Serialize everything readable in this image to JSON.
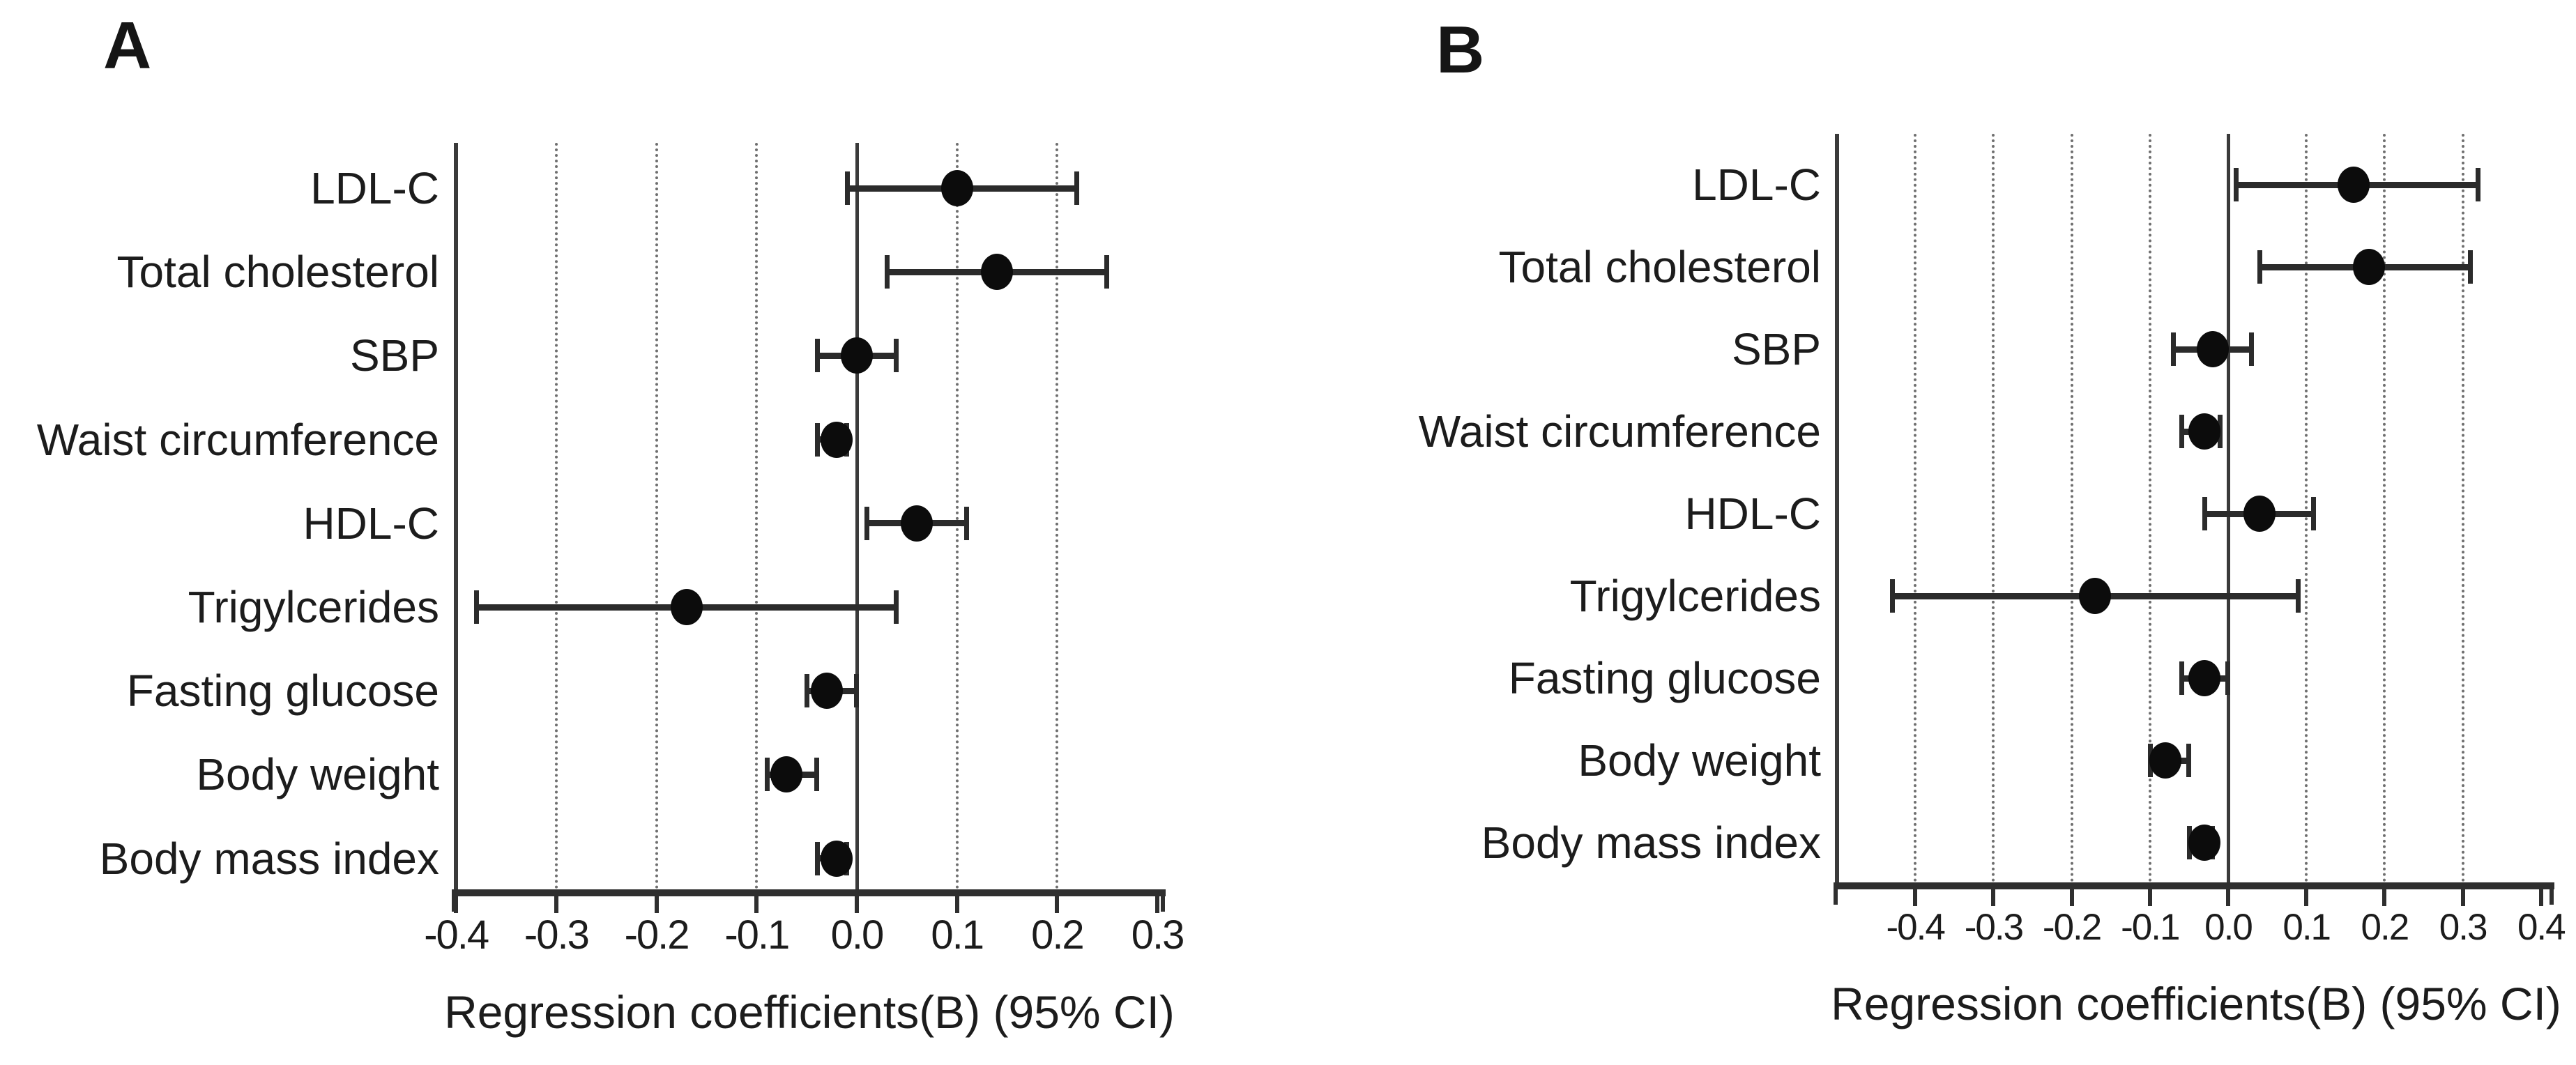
{
  "figure": {
    "background": "#ffffff",
    "text_color": "#1c1c1c",
    "axis_color": "#2f2f2f",
    "grid_color": "#6f6f6f",
    "marker_color": "#0c0c0c"
  },
  "chart_data": [
    {
      "type": "scatter",
      "subtype": "forest-plot-horizontal-ci",
      "panel_label": "A",
      "xlabel": "Regression coefficients(B) (95% CI)",
      "categories": [
        "LDL-C",
        "Total cholesterol",
        "SBP",
        "Waist circumference",
        "HDL-C",
        "Trigylcerides",
        "Fasting glucose",
        "Body weight",
        "Body mass index"
      ],
      "series": [
        {
          "name": "Regression coefficient (95% CI)",
          "values": [
            {
              "b": 0.1,
              "lo": -0.01,
              "hi": 0.22
            },
            {
              "b": 0.14,
              "lo": 0.03,
              "hi": 0.25
            },
            {
              "b": 0.0,
              "lo": -0.04,
              "hi": 0.04
            },
            {
              "b": -0.02,
              "lo": -0.04,
              "hi": -0.01
            },
            {
              "b": 0.06,
              "lo": 0.01,
              "hi": 0.11
            },
            {
              "b": -0.17,
              "lo": -0.38,
              "hi": 0.04
            },
            {
              "b": -0.03,
              "lo": -0.05,
              "hi": 0.0
            },
            {
              "b": -0.07,
              "lo": -0.09,
              "hi": -0.04
            },
            {
              "b": -0.02,
              "lo": -0.04,
              "hi": -0.01
            }
          ]
        }
      ],
      "xlim": [
        -0.4,
        0.31
      ],
      "xticks": [
        -0.4,
        -0.3,
        -0.2,
        -0.1,
        0.0,
        0.1,
        0.2,
        0.3
      ],
      "xtick_labels": [
        "-0.4",
        "-0.3",
        "-0.2",
        "-0.1",
        "0.0",
        "0.1",
        "0.2",
        "0.3"
      ],
      "gridlines_dotted": [
        -0.3,
        -0.2,
        -0.1,
        0.1,
        0.2
      ],
      "zero_line": 0.0,
      "grid": true,
      "legend": false
    },
    {
      "type": "scatter",
      "subtype": "forest-plot-horizontal-ci",
      "panel_label": "B",
      "xlabel": "Regression coefficients(B) (95% CI)",
      "categories": [
        "LDL-C",
        "Total cholesterol",
        "SBP",
        "Waist circumference",
        "HDL-C",
        "Trigylcerides",
        "Fasting glucose",
        "Body weight",
        "Body mass index"
      ],
      "series": [
        {
          "name": "Regression coefficient (95% CI)",
          "values": [
            {
              "b": 0.16,
              "lo": 0.01,
              "hi": 0.32
            },
            {
              "b": 0.18,
              "lo": 0.04,
              "hi": 0.31
            },
            {
              "b": -0.02,
              "lo": -0.07,
              "hi": 0.03
            },
            {
              "b": -0.03,
              "lo": -0.06,
              "hi": -0.01
            },
            {
              "b": 0.04,
              "lo": -0.03,
              "hi": 0.11
            },
            {
              "b": -0.17,
              "lo": -0.43,
              "hi": 0.09
            },
            {
              "b": -0.03,
              "lo": -0.06,
              "hi": 0.0
            },
            {
              "b": -0.08,
              "lo": -0.1,
              "hi": -0.05
            },
            {
              "b": -0.03,
              "lo": -0.05,
              "hi": -0.02
            }
          ]
        }
      ],
      "xlim": [
        -0.5,
        0.42
      ],
      "xticks": [
        -0.4,
        -0.3,
        -0.2,
        -0.1,
        0.0,
        0.1,
        0.2,
        0.3,
        0.4
      ],
      "xtick_labels": [
        "-0.4",
        "-0.3",
        "-0.2",
        "-0.1",
        "0.0",
        "0.1",
        "0.2",
        "0.3",
        "0.4"
      ],
      "gridlines_dotted": [
        -0.4,
        -0.3,
        -0.2,
        -0.1,
        0.1,
        0.2,
        0.3
      ],
      "zero_line": 0.0,
      "grid": true,
      "legend": false
    }
  ]
}
